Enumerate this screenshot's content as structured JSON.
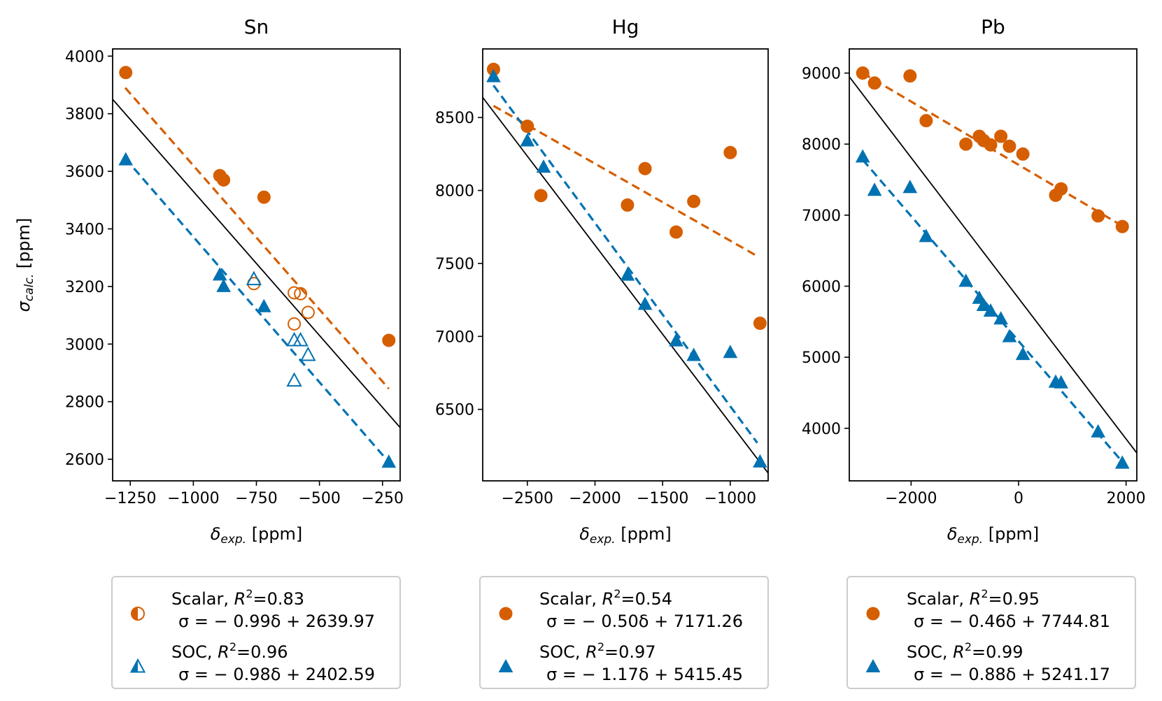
{
  "colors": {
    "scalar": "#d55e00",
    "soc": "#0072b2",
    "ideal": "#000000"
  },
  "chart_data": [
    {
      "type": "scatter",
      "title": "Sn",
      "xlabel_symbol": "δ",
      "xlabel_sub": "exp.",
      "xlabel_unit": " [ppm]",
      "ylabel_symbol": "σ",
      "ylabel_sub": "calc.",
      "ylabel_unit": " [ppm]",
      "xlim": [
        -1320,
        -180
      ],
      "ylim": [
        2525,
        4025
      ],
      "xticks": [
        -1250,
        -1000,
        -750,
        -500,
        -250
      ],
      "xtick_labels": [
        "−1250",
        "−1000",
        "−750",
        "−500",
        "−250"
      ],
      "yticks": [
        2600,
        2800,
        3000,
        3200,
        3400,
        3600,
        3800,
        4000
      ],
      "ytick_labels": [
        "2600",
        "2800",
        "3000",
        "3200",
        "3400",
        "3600",
        "3800",
        "4000"
      ],
      "ideal_line": {
        "slope": -1,
        "intercept": 2530
      },
      "series": [
        {
          "kind": "scalar",
          "name": "Scalar",
          "r2": "0.83",
          "equation": "σ = − 0.99δ + 2639.97",
          "marker": "circle",
          "legend_marker": "half-circle",
          "fit": {
            "x": [
              -1270,
              -225
            ],
            "y": [
              3890,
              2845
            ]
          },
          "points": [
            {
              "x": -1268,
              "y": 3943,
              "filled": true
            },
            {
              "x": -895,
              "y": 3585,
              "filled": true
            },
            {
              "x": -880,
              "y": 3570,
              "filled": true
            },
            {
              "x": -720,
              "y": 3510,
              "filled": true
            },
            {
              "x": -225,
              "y": 3013,
              "filled": true
            },
            {
              "x": -760,
              "y": 3210,
              "filled": false
            },
            {
              "x": -600,
              "y": 3178,
              "filled": false
            },
            {
              "x": -575,
              "y": 3175,
              "filled": false
            },
            {
              "x": -600,
              "y": 3070,
              "filled": false
            },
            {
              "x": -545,
              "y": 3110,
              "filled": false
            }
          ]
        },
        {
          "kind": "soc",
          "name": "SOC",
          "r2": "0.96",
          "equation": "σ = − 0.98δ + 2402.59",
          "marker": "triangle",
          "legend_marker": "half-triangle",
          "fit": {
            "x": [
              -1270,
              -225
            ],
            "y": [
              3645,
              2590
            ]
          },
          "points": [
            {
              "x": -1268,
              "y": 3640,
              "filled": true
            },
            {
              "x": -895,
              "y": 3240,
              "filled": true
            },
            {
              "x": -880,
              "y": 3200,
              "filled": true
            },
            {
              "x": -720,
              "y": 3130,
              "filled": true
            },
            {
              "x": -225,
              "y": 2590,
              "filled": true
            },
            {
              "x": -760,
              "y": 3225,
              "filled": false
            },
            {
              "x": -600,
              "y": 3013,
              "filled": false
            },
            {
              "x": -575,
              "y": 3013,
              "filled": false
            },
            {
              "x": -545,
              "y": 2962,
              "filled": false
            },
            {
              "x": -600,
              "y": 2873,
              "filled": false
            }
          ]
        }
      ]
    },
    {
      "type": "scatter",
      "title": "Hg",
      "xlabel_symbol": "δ",
      "xlabel_sub": "exp.",
      "xlabel_unit": " [ppm]",
      "ylabel_symbol": "",
      "ylabel_sub": "",
      "ylabel_unit": "",
      "xlim": [
        -2830,
        -720
      ],
      "ylim": [
        6010,
        8970
      ],
      "xticks": [
        -2500,
        -2000,
        -1500,
        -1000
      ],
      "xtick_labels": [
        "−2500",
        "−2000",
        "−1500",
        "−1000"
      ],
      "yticks": [
        6500,
        7000,
        7500,
        8000,
        8500
      ],
      "ytick_labels": [
        "6500",
        "7000",
        "7500",
        "8000",
        "8500"
      ],
      "ideal_line": {
        "slope": -1.22,
        "intercept": 5185
      },
      "series": [
        {
          "kind": "scalar",
          "name": "Scalar",
          "r2": "0.54",
          "equation": "σ = − 0.50δ + 7171.26",
          "marker": "circle",
          "legend_marker": "circle",
          "fit": {
            "x": [
              -2750,
              -800
            ],
            "y": [
              8580,
              7550
            ]
          },
          "points": [
            {
              "x": -2750,
              "y": 8830,
              "filled": true
            },
            {
              "x": -2500,
              "y": 8440,
              "filled": true
            },
            {
              "x": -2400,
              "y": 7965,
              "filled": true
            },
            {
              "x": -1760,
              "y": 7900,
              "filled": true
            },
            {
              "x": -1630,
              "y": 8150,
              "filled": true
            },
            {
              "x": -1400,
              "y": 7715,
              "filled": true
            },
            {
              "x": -1270,
              "y": 7925,
              "filled": true
            },
            {
              "x": -1000,
              "y": 8260,
              "filled": true
            },
            {
              "x": -780,
              "y": 7090,
              "filled": true
            }
          ]
        },
        {
          "kind": "soc",
          "name": "SOC",
          "r2": "0.97",
          "equation": "σ = − 1.17δ + 5415.45",
          "marker": "triangle",
          "legend_marker": "triangle",
          "fit": {
            "x": [
              -2750,
              -800
            ],
            "y": [
              8720,
              6270
            ]
          },
          "points": [
            {
              "x": -2750,
              "y": 8780,
              "filled": true
            },
            {
              "x": -2500,
              "y": 8340,
              "filled": true
            },
            {
              "x": -2380,
              "y": 8160,
              "filled": true
            },
            {
              "x": -1760,
              "y": 7420,
              "filled": true
            },
            {
              "x": -1630,
              "y": 7220,
              "filled": true
            },
            {
              "x": -1400,
              "y": 6970,
              "filled": true
            },
            {
              "x": -1270,
              "y": 6870,
              "filled": true
            },
            {
              "x": -1000,
              "y": 6890,
              "filled": true
            },
            {
              "x": -780,
              "y": 6140,
              "filled": true
            }
          ]
        }
      ]
    },
    {
      "type": "scatter",
      "title": "Pb",
      "xlabel_symbol": "δ",
      "xlabel_sub": "exp.",
      "xlabel_unit": " [ppm]",
      "ylabel_symbol": "",
      "ylabel_sub": "",
      "ylabel_unit": "",
      "xlim": [
        -3150,
        2200
      ],
      "ylim": [
        3260,
        9340
      ],
      "xticks": [
        -2000,
        0,
        2000
      ],
      "xtick_labels": [
        "−2000",
        "0",
        "2000"
      ],
      "yticks": [
        4000,
        5000,
        6000,
        7000,
        8000,
        9000
      ],
      "ytick_labels": [
        "4000",
        "5000",
        "6000",
        "7000",
        "8000",
        "9000"
      ],
      "ideal_line": {
        "slope": -0.99,
        "intercept": 5830
      },
      "series": [
        {
          "kind": "scalar",
          "name": "Scalar",
          "r2": "0.95",
          "equation": "σ = − 0.46δ + 7744.81",
          "marker": "circle",
          "legend_marker": "circle",
          "fit": {
            "x": [
              -2900,
              1950
            ],
            "y": [
              9000,
              6840
            ]
          },
          "points": [
            {
              "x": -2900,
              "y": 9000,
              "filled": true
            },
            {
              "x": -2680,
              "y": 8860,
              "filled": true
            },
            {
              "x": -2020,
              "y": 8960,
              "filled": true
            },
            {
              "x": -1720,
              "y": 8330,
              "filled": true
            },
            {
              "x": -980,
              "y": 8000,
              "filled": true
            },
            {
              "x": -730,
              "y": 8110,
              "filled": true
            },
            {
              "x": -650,
              "y": 8050,
              "filled": true
            },
            {
              "x": -520,
              "y": 7990,
              "filled": true
            },
            {
              "x": -330,
              "y": 8110,
              "filled": true
            },
            {
              "x": -170,
              "y": 7970,
              "filled": true
            },
            {
              "x": 80,
              "y": 7860,
              "filled": true
            },
            {
              "x": 690,
              "y": 7280,
              "filled": true
            },
            {
              "x": 790,
              "y": 7370,
              "filled": true
            },
            {
              "x": 1480,
              "y": 6990,
              "filled": true
            },
            {
              "x": 1930,
              "y": 6840,
              "filled": true
            }
          ]
        },
        {
          "kind": "soc",
          "name": "SOC",
          "r2": "0.99",
          "equation": "σ = − 0.88δ + 5241.17",
          "marker": "triangle",
          "legend_marker": "triangle",
          "fit": {
            "x": [
              -2900,
              1950
            ],
            "y": [
              7780,
              3510
            ]
          },
          "points": [
            {
              "x": -2900,
              "y": 7820,
              "filled": true
            },
            {
              "x": -2680,
              "y": 7350,
              "filled": true
            },
            {
              "x": -2020,
              "y": 7390,
              "filled": true
            },
            {
              "x": -1720,
              "y": 6700,
              "filled": true
            },
            {
              "x": -980,
              "y": 6070,
              "filled": true
            },
            {
              "x": -730,
              "y": 5830,
              "filled": true
            },
            {
              "x": -650,
              "y": 5730,
              "filled": true
            },
            {
              "x": -520,
              "y": 5650,
              "filled": true
            },
            {
              "x": -330,
              "y": 5540,
              "filled": true
            },
            {
              "x": -170,
              "y": 5290,
              "filled": true
            },
            {
              "x": 80,
              "y": 5040,
              "filled": true
            },
            {
              "x": 690,
              "y": 4650,
              "filled": true
            },
            {
              "x": 790,
              "y": 4640,
              "filled": true
            },
            {
              "x": 1480,
              "y": 3950,
              "filled": true
            },
            {
              "x": 1930,
              "y": 3510,
              "filled": true
            }
          ]
        }
      ]
    }
  ]
}
